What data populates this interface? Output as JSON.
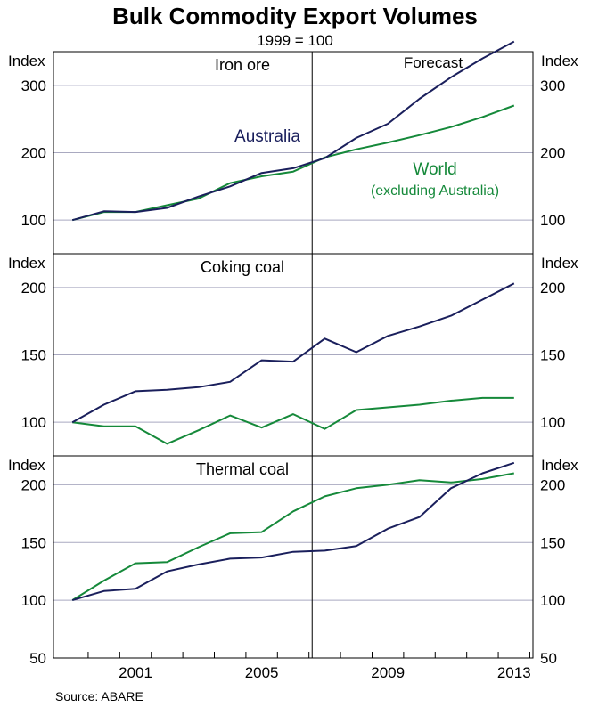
{
  "chart_data": {
    "type": "line",
    "title": "Bulk Commodity Export Volumes",
    "subtitle": "1999 = 100",
    "source": "Source: ABARE",
    "forecast_label": "Forecast",
    "forecast_start_year": 2006.6,
    "x": [
      1999,
      2000,
      2001,
      2002,
      2003,
      2004,
      2005,
      2006,
      2007,
      2008,
      2009,
      2010,
      2011,
      2012,
      2013
    ],
    "xlim": [
      1998.4,
      2013.6
    ],
    "xticks": [
      2001,
      2005,
      2009,
      2013
    ],
    "colors": {
      "australia": "#1a1f5c",
      "world": "#15893a"
    },
    "panels": [
      {
        "label": "Iron ore",
        "ylabel_left": "Index",
        "ylabel_right": "Index",
        "ylim": [
          50,
          350
        ],
        "yticks": [
          100,
          200,
          300
        ],
        "series": [
          {
            "name": "Australia",
            "values": [
              100,
              113,
              112,
              118,
              135,
              150,
              170,
              177,
              192,
              222,
              243,
              280,
              312,
              340,
              365
            ]
          },
          {
            "name": "World",
            "values": [
              100,
              112,
              112,
              122,
              132,
              155,
              165,
              172,
              193,
              205,
              215,
              226,
              238,
              253,
              270
            ]
          }
        ],
        "annotations": [
          {
            "series": "Australia",
            "text": "Australia"
          },
          {
            "series": "World",
            "text": "World"
          },
          {
            "series": "World",
            "text": "(excluding Australia)"
          }
        ]
      },
      {
        "label": "Coking coal",
        "ylabel_left": "Index",
        "ylabel_right": "Index",
        "ylim": [
          75,
          225
        ],
        "yticks": [
          100,
          150,
          200
        ],
        "series": [
          {
            "name": "Australia",
            "values": [
              100,
              113,
              123,
              124,
              126,
              130,
              146,
              145,
              162,
              152,
              164,
              171,
              179,
              191,
              203
            ]
          },
          {
            "name": "World",
            "values": [
              100,
              97,
              97,
              84,
              94,
              105,
              96,
              106,
              95,
              109,
              111,
              113,
              116,
              118,
              118
            ]
          }
        ]
      },
      {
        "label": "Thermal coal",
        "ylabel_left": "Index",
        "ylabel_right": "Index",
        "ylim": [
          50,
          225
        ],
        "yticks": [
          50,
          100,
          150,
          200
        ],
        "series": [
          {
            "name": "Australia",
            "values": [
              100,
              108,
              110,
              125,
              131,
              136,
              137,
              142,
              143,
              147,
              162,
              172,
              197,
              210,
              219
            ]
          },
          {
            "name": "World",
            "values": [
              100,
              117,
              132,
              133,
              146,
              158,
              159,
              177,
              190,
              197,
              200,
              204,
              202,
              205,
              210
            ]
          }
        ]
      }
    ]
  }
}
